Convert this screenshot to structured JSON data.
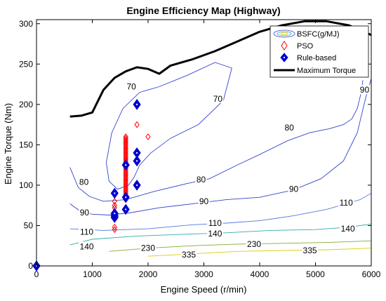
{
  "chart_data": {
    "type": "scatter",
    "title": "Engine Efficiency Map (Highway)",
    "xlabel": "Engine Speed (r/min)",
    "ylabel": "Engine Torque (Nm)",
    "xlim": [
      0,
      6000
    ],
    "ylim": [
      0,
      305
    ],
    "xticks": [
      0,
      1000,
      2000,
      3000,
      4000,
      5000,
      6000
    ],
    "yticks": [
      0,
      50,
      100,
      150,
      200,
      250,
      300
    ],
    "grid": false,
    "legend_position": "top-right",
    "legend": [
      {
        "label": "BSFC(g/MJ)",
        "marker": "ellipse"
      },
      {
        "label": "PSO",
        "marker": "diamond-open",
        "color": "#ff0000"
      },
      {
        "label": "Rule-based",
        "marker": "diamond-filled",
        "color": "#0000cc"
      },
      {
        "label": "Maximum Torque",
        "marker": "line",
        "color": "#000000"
      }
    ],
    "max_torque": {
      "name": "Maximum Torque",
      "color": "#000000",
      "x": [
        600,
        800,
        1000,
        1200,
        1400,
        1600,
        1800,
        2000,
        2200,
        2400,
        2800,
        3200,
        3600,
        4000,
        4400,
        4800,
        5200,
        5600,
        6000
      ],
      "y": [
        185,
        186,
        190,
        218,
        233,
        241,
        246,
        244,
        238,
        248,
        256,
        266,
        278,
        290,
        298,
        303,
        303,
        298,
        286
      ]
    },
    "contours": [
      {
        "level": "70",
        "color": "#3344cc",
        "x": [
          1250,
          1350,
          1550,
          1850,
          2200,
          2700,
          3200,
          3500,
          3350,
          2900,
          2400,
          2050,
          1850,
          1750,
          1650,
          1450,
          1300,
          1250
        ],
        "y": [
          128,
          165,
          195,
          215,
          222,
          236,
          252,
          245,
          205,
          175,
          158,
          140,
          125,
          110,
          100,
          95,
          105,
          128
        ],
        "labels": [
          [
            1700,
            222
          ],
          [
            3250,
            207
          ]
        ]
      },
      {
        "level": "80",
        "color": "#3344cc",
        "x": [
          600,
          750,
          950,
          1200,
          1600,
          2100,
          2700,
          3100,
          3600,
          4000,
          4500,
          4900,
          5250,
          5500,
          5650,
          5750,
          5820,
          5850
        ],
        "y": [
          122,
          97,
          86,
          80,
          82,
          92,
          102,
          108,
          125,
          138,
          155,
          165,
          170,
          175,
          182,
          195,
          215,
          230
        ],
        "labels": [
          [
            850,
            104
          ],
          [
            2950,
            107
          ],
          [
            4530,
            171
          ]
        ]
      },
      {
        "level": "90",
        "color": "#3344cc",
        "x": [
          600,
          800,
          1000,
          1300,
          1700,
          2200,
          2800,
          3400,
          4000,
          4600,
          5100,
          5500,
          5750,
          5900,
          6000
        ],
        "y": [
          77,
          67,
          64,
          63,
          66,
          72,
          77,
          82,
          85,
          94,
          108,
          130,
          165,
          208,
          232
        ],
        "labels": [
          [
            860,
            66
          ],
          [
            3000,
            80
          ],
          [
            4610,
            95
          ],
          [
            5880,
            218
          ]
        ]
      },
      {
        "level": "110",
        "color": "#5577dd",
        "x": [
          600,
          1200,
          2000,
          2800,
          3400,
          4000,
          4600,
          5200,
          5800,
          6000
        ],
        "y": [
          46,
          44,
          46,
          51,
          53,
          56,
          62,
          70,
          82,
          90
        ],
        "labels": [
          [
            900,
            42
          ],
          [
            3200,
            53
          ],
          [
            5550,
            78
          ]
        ]
      },
      {
        "level": "140",
        "color": "#33aaaa",
        "x": [
          600,
          1000,
          1800,
          2600,
          3400,
          4200,
          5000,
          5600,
          6000
        ],
        "y": [
          26,
          33,
          37,
          39,
          41,
          44,
          45,
          48,
          52
        ],
        "labels": [
          [
            900,
            24
          ],
          [
            3200,
            40
          ],
          [
            5580,
            46
          ]
        ]
      },
      {
        "level": "230",
        "color": "#88aa33",
        "x": [
          1300,
          2000,
          2800,
          3600,
          4400,
          5200,
          6000
        ],
        "y": [
          18,
          22,
          25,
          27,
          28,
          29,
          31
        ],
        "labels": [
          [
            2000,
            22
          ],
          [
            3900,
            27
          ]
        ]
      },
      {
        "level": "335",
        "color": "#ddcc00",
        "x": [
          2000,
          2800,
          3600,
          4400,
          5200,
          6000
        ],
        "y": [
          12,
          15,
          18,
          19,
          20,
          22
        ],
        "labels": [
          [
            2730,
            14
          ],
          [
            4900,
            19
          ]
        ]
      }
    ],
    "series": [
      {
        "name": "PSO",
        "color": "#ff0000",
        "x": [
          1400,
          1400,
          1400,
          1400,
          1400,
          1400,
          1400,
          1600,
          1600,
          1600,
          1600,
          1600,
          1600,
          1600,
          1600,
          1600,
          1600,
          1600,
          1600,
          1600,
          1600,
          1600,
          1600,
          1600,
          1600,
          1600,
          1600,
          1600,
          1600,
          1600,
          1600,
          1600,
          1600,
          1600,
          1600,
          1600,
          1600,
          1600,
          1600,
          1600,
          1600,
          1600,
          1600,
          1600,
          1600,
          1600,
          1800,
          2000
        ],
        "y": [
          45,
          48,
          60,
          65,
          72,
          75,
          80,
          82,
          85,
          88,
          90,
          92,
          94,
          96,
          98,
          100,
          102,
          104,
          106,
          108,
          110,
          112,
          114,
          116,
          118,
          120,
          122,
          124,
          126,
          128,
          130,
          132,
          134,
          136,
          138,
          140,
          142,
          144,
          146,
          148,
          150,
          152,
          154,
          156,
          158,
          160,
          175,
          160
        ]
      },
      {
        "name": "Rule-based",
        "color": "#0000cc",
        "x": [
          0,
          1400,
          1400,
          1400,
          1400,
          1600,
          1600,
          1600,
          1800,
          1800,
          1800,
          1800
        ],
        "y": [
          0,
          60,
          62,
          65,
          90,
          70,
          85,
          125,
          100,
          130,
          140,
          200
        ]
      }
    ]
  }
}
